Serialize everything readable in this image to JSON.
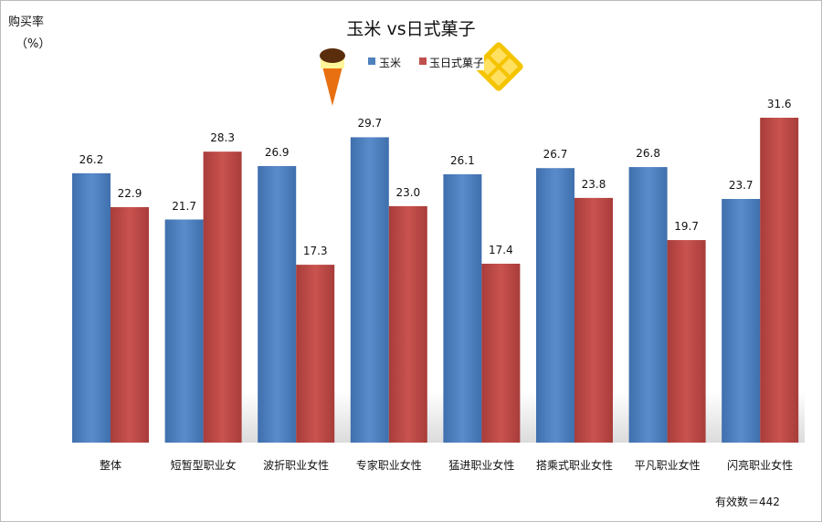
{
  "chart_data": {
    "type": "bar",
    "title": "玉米  vs日式菓子",
    "ylabel": "购买率",
    "yunit": "（%）",
    "categories": [
      "整体",
      "短暂型职业女",
      "波折职业女性",
      "专家职业女性",
      "猛进职业女性",
      "搭乘式职业女性",
      "平凡职业女性",
      "闪亮职业女性"
    ],
    "series": [
      {
        "name": "玉米",
        "color": "#4f81bd",
        "values": [
          26.2,
          21.7,
          26.9,
          29.7,
          26.1,
          26.7,
          26.8,
          23.7
        ]
      },
      {
        "name": "玉日式菓子",
        "color": "#c0504d",
        "values": [
          22.9,
          28.3,
          17.3,
          23.0,
          17.4,
          23.8,
          19.7,
          31.6
        ]
      }
    ],
    "ylim": [
      0,
      31.6
    ],
    "grid": false,
    "legend": "top-center",
    "note": "有效数＝442"
  }
}
